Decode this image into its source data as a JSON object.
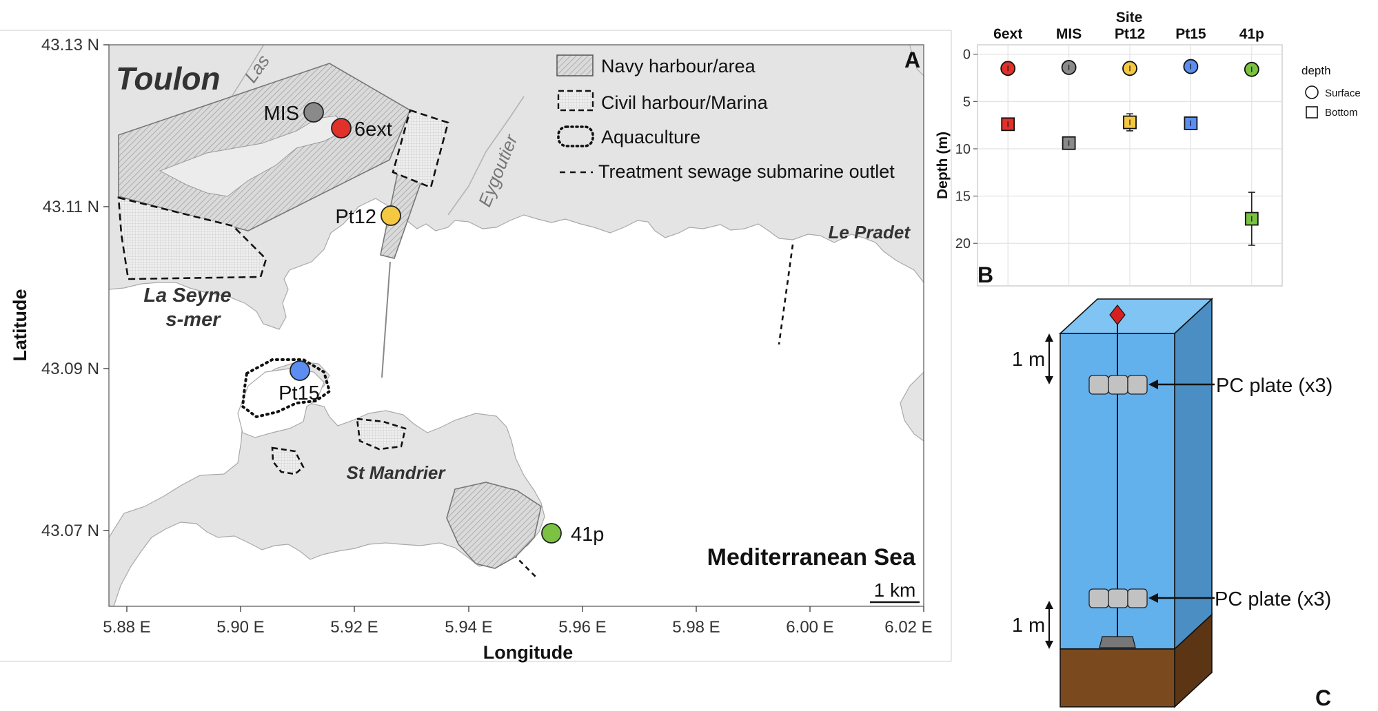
{
  "map": {
    "panel_label": "A",
    "x_axis_title": "Longitude",
    "y_axis_title": "Latitude",
    "x_ticks": [
      "5.88 E",
      "5.90 E",
      "5.92 E",
      "5.94 E",
      "5.96 E",
      "5.98 E",
      "6.00 E",
      "6.02 E"
    ],
    "y_ticks": [
      "43.13 N",
      "43.11 N",
      "43.09 N",
      "43.07 N"
    ],
    "places": {
      "toulon": "Toulon",
      "la_seyne_1": "La Seyne",
      "la_seyne_2": "s-mer",
      "st_mandrier": "St Mandrier",
      "le_pradet": "Le Pradet",
      "sea": "Mediterranean Sea",
      "las": "Las",
      "eygoutier": "Eygoutier"
    },
    "scale_bar": "1 km",
    "legend": {
      "navy": "Navy harbour/area",
      "civil": "Civil harbour/Marina",
      "aquaculture": "Aquaculture",
      "outlet": "Treatment sewage submarine outlet"
    },
    "sites": [
      {
        "name": "MIS",
        "color": "#8a8a8a"
      },
      {
        "name": "6ext",
        "color": "#e0312b"
      },
      {
        "name": "Pt12",
        "color": "#f5c842"
      },
      {
        "name": "Pt15",
        "color": "#5b8ef0"
      },
      {
        "name": "41p",
        "color": "#7cc242"
      }
    ],
    "colors": {
      "land": "#e4e4e4",
      "sea": "#ffffff",
      "hatch": "#9a9a9a"
    }
  },
  "chart_data": {
    "type": "scatter",
    "panel_label": "B",
    "top_axis_title": "Site",
    "ylabel": "Depth (m)",
    "categories": [
      "6ext",
      "MIS",
      "Pt12",
      "Pt15",
      "41p"
    ],
    "yticks": [
      "0",
      "5",
      "10",
      "15",
      "20"
    ],
    "ylim": [
      -1,
      24.5
    ],
    "y_reversed": true,
    "legend_title": "depth",
    "series": [
      {
        "name": "Surface",
        "marker": "circle",
        "values": [
          1.5,
          1.4,
          1.5,
          1.3,
          1.6
        ],
        "err": [
          0.2,
          0.2,
          0.2,
          0.2,
          0.2
        ]
      },
      {
        "name": "Bottom",
        "marker": "square",
        "values": [
          7.4,
          9.4,
          7.2,
          7.3,
          17.4
        ],
        "err": [
          0.2,
          0.4,
          0.9,
          0.3,
          2.8
        ]
      }
    ],
    "colors": [
      "#e0312b",
      "#8a8a8a",
      "#f5c842",
      "#5b8ef0",
      "#7cc242"
    ]
  },
  "diagram": {
    "panel_label": "C",
    "dim_top": "1 m",
    "dim_bottom": "1 m",
    "plate_top": "PC plate (x3)",
    "plate_bottom": "PC plate (x3)",
    "colors": {
      "water_front": "#62b0ec",
      "water_side": "#4a8ec4",
      "water_top": "#7fc4f2",
      "sediment_front": "#7a4a1e",
      "sediment_side": "#5c3514",
      "buoy": "#d61f1f",
      "plate": "#c2c2c2"
    }
  }
}
